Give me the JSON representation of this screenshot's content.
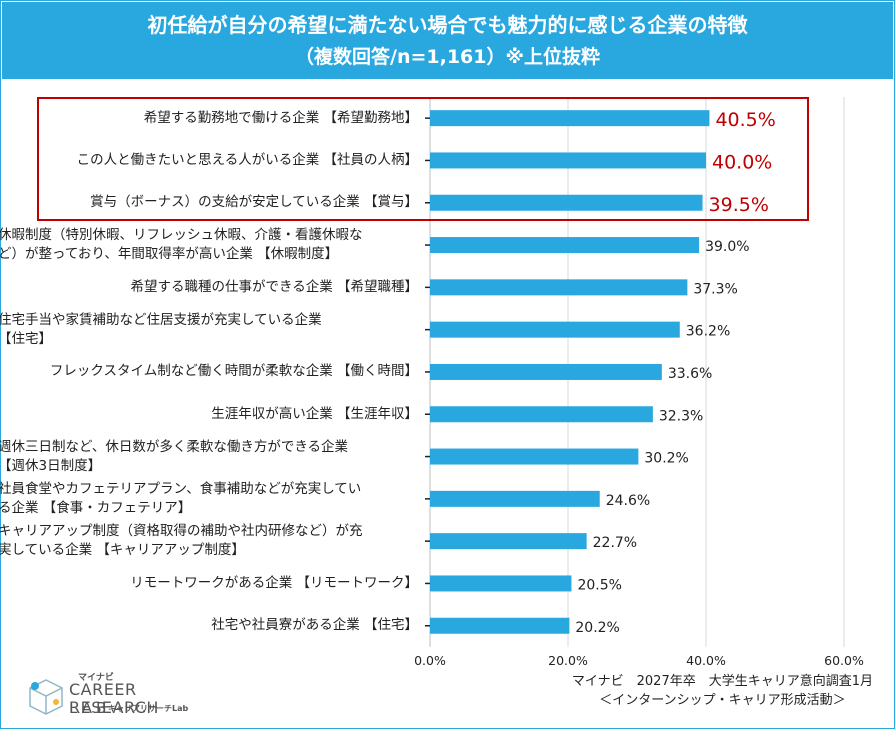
{
  "header": {
    "title_line1": "初任給が自分の希望に満たない場合でも魅力的に感じる企業の特徴",
    "title_line2": "（複数回答/n=1,161）※上位抜粋"
  },
  "chart_data": {
    "type": "bar",
    "orientation": "horizontal",
    "categories": [
      [
        "希望する勤務地で働ける企業 【希望勤務地】"
      ],
      [
        "この人と働きたいと思える人がいる企業 【社員の人柄】"
      ],
      [
        "賞与（ボーナス）の支給が安定している企業 【賞与】"
      ],
      [
        "休暇制度（特別休暇、リフレッシュ休暇、介護・看護休暇な",
        "ど）が整っており、年間取得率が高い企業 【休暇制度】"
      ],
      [
        "希望する職種の仕事ができる企業 【希望職種】"
      ],
      [
        "住宅手当や家賃補助など住居支援が充実している企業",
        "【住宅】"
      ],
      [
        "フレックスタイム制など働く時間が柔軟な企業 【働く時間】"
      ],
      [
        "生涯年収が高い企業 【生涯年収】"
      ],
      [
        "週休三日制など、休日数が多く柔軟な働き方ができる企業",
        "【週休3日制度】"
      ],
      [
        "社員食堂やカフェテリアプラン、食事補助などが充実してい",
        "る企業 【食事・カフェテリア】"
      ],
      [
        "キャリアアップ制度（資格取得の補助や社内研修など）が充",
        "実している企業 【キャリアアップ制度】"
      ],
      [
        "リモートワークがある企業 【リモートワーク】"
      ],
      [
        "社宅や社員寮がある企業 【住宅】"
      ]
    ],
    "values": [
      40.5,
      40.0,
      39.5,
      39.0,
      37.3,
      36.2,
      33.6,
      32.3,
      30.2,
      24.6,
      22.7,
      20.5,
      20.2
    ],
    "value_labels": [
      "40.5%",
      "40.0%",
      "39.5%",
      "39.0%",
      "37.3%",
      "36.2%",
      "33.6%",
      "32.3%",
      "30.2%",
      "24.6%",
      "22.7%",
      "20.5%",
      "20.2%"
    ],
    "highlighted_count": 3,
    "xlim": [
      0,
      60
    ],
    "x_ticks": [
      "0.0%",
      "20.0%",
      "40.0%",
      "60.0%"
    ],
    "x_tick_values": [
      0,
      20,
      40,
      60
    ],
    "grid": "vertical",
    "colors": {
      "bar": "#29a8e0",
      "highlight": "#c00000",
      "grid": "#d9d9d9",
      "header": "#29a8e0"
    }
  },
  "source": {
    "line1": "マイナビ　2027年卒　大学生キャリア意向調査1月",
    "line2": "＜インターンシップ・キャリア形成活動＞"
  },
  "logo": {
    "brand_small": "マイナビ",
    "brand_main": "CAREER RESEARCH",
    "brand_lab": "LAB",
    "brand_sub": "キャリアリサーチLab",
    "icon": "cube-logo-icon"
  }
}
